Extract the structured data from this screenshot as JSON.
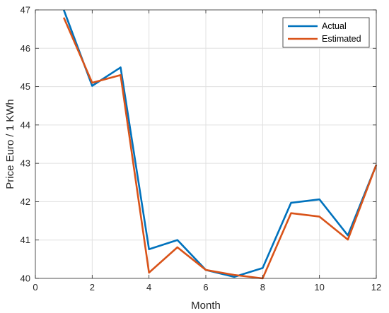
{
  "chart_data": {
    "type": "line",
    "title": "",
    "xlabel": "Month",
    "ylabel": "Price Euro / 1 KWh",
    "xlim": [
      0,
      12
    ],
    "ylim": [
      40,
      47
    ],
    "xticks": [
      0,
      2,
      4,
      6,
      8,
      10,
      12
    ],
    "yticks": [
      40,
      41,
      42,
      43,
      44,
      45,
      46,
      47
    ],
    "grid": true,
    "legend_position": "top-right",
    "x": [
      1,
      2,
      3,
      4,
      5,
      6,
      7,
      8,
      9,
      10,
      11,
      12
    ],
    "series": [
      {
        "name": "Actual",
        "color": "#0072BD",
        "values": [
          47.0,
          45.02,
          45.5,
          40.76,
          41.0,
          40.22,
          40.04,
          40.27,
          41.97,
          42.06,
          41.12,
          42.96
        ]
      },
      {
        "name": "Estimated",
        "color": "#D95319",
        "values": [
          46.8,
          45.1,
          45.3,
          40.15,
          40.81,
          40.22,
          40.09,
          40.0,
          41.7,
          41.61,
          41.01,
          42.96
        ]
      }
    ]
  }
}
